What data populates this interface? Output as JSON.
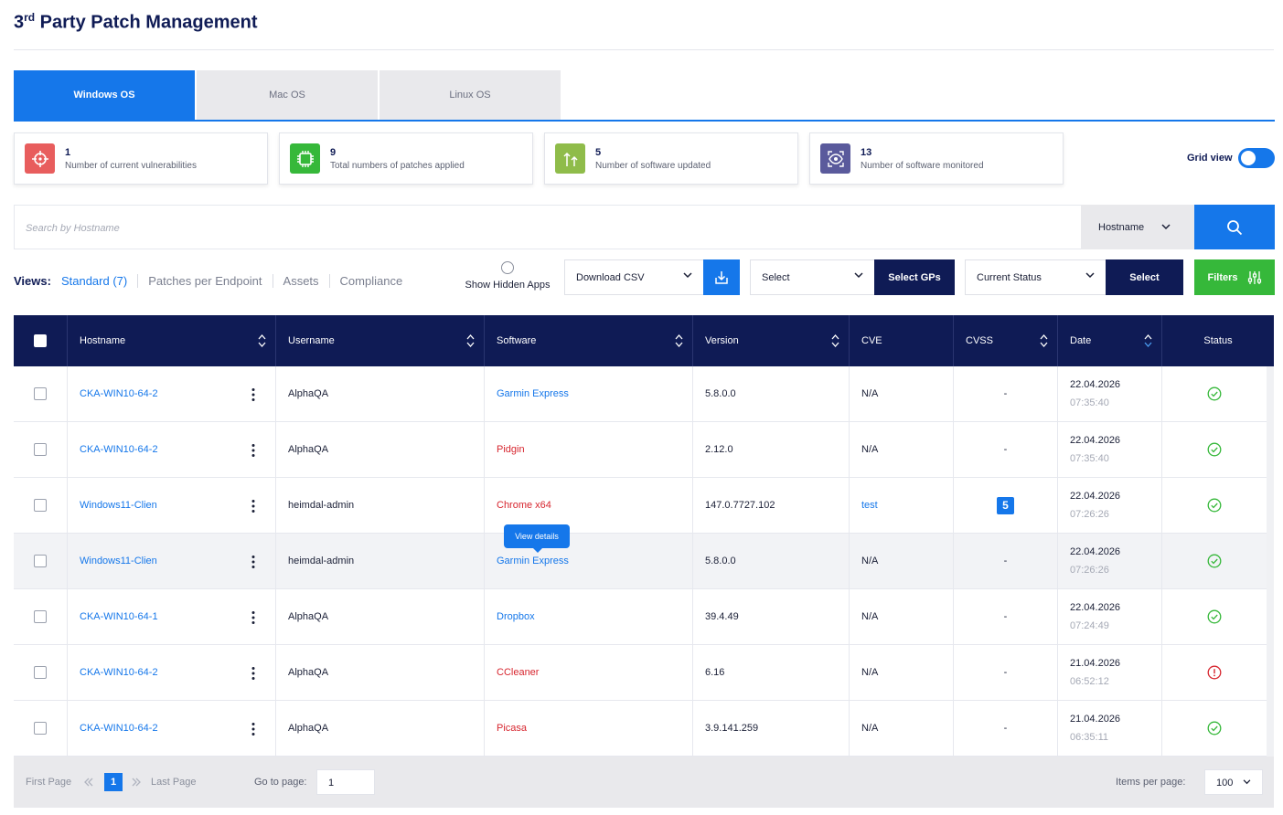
{
  "page": {
    "title_prefix": "3",
    "title_sup": "rd",
    "title_rest": " Party Patch Management"
  },
  "tabs": [
    {
      "label": "Windows OS",
      "active": true
    },
    {
      "label": "Mac OS",
      "active": false
    },
    {
      "label": "Linux OS",
      "active": false
    }
  ],
  "cards": [
    {
      "value": "1",
      "label": "Number of current vulnerabilities",
      "icon": "crosshair-icon",
      "color": "#e85d5d"
    },
    {
      "value": "9",
      "label": "Total numbers of patches applied",
      "icon": "chip-icon",
      "color": "#36b83a"
    },
    {
      "value": "5",
      "label": "Number of software updated",
      "icon": "upload-arrows-icon",
      "color": "#8fbc4a"
    },
    {
      "value": "13",
      "label": "Number of software monitored",
      "icon": "eye-icon",
      "color": "#5a5a9c"
    }
  ],
  "grid_view": {
    "label": "Grid view",
    "on": true
  },
  "search": {
    "placeholder": "Search by Hostname",
    "select_value": "Hostname"
  },
  "views": {
    "label": "Views:",
    "items": [
      "Standard (7)",
      "Patches per Endpoint",
      "Assets",
      "Compliance"
    ]
  },
  "hidden_apps": {
    "label": "Show Hidden Apps"
  },
  "toolbar": {
    "download_csv": "Download CSV",
    "gp_select": "Select",
    "select_gps": "Select GPs",
    "status_select": "Current Status",
    "select_button": "Select",
    "filters": "Filters"
  },
  "table": {
    "headers": [
      "Hostname",
      "Username",
      "Software",
      "Version",
      "CVE",
      "CVSS",
      "Date",
      "Status"
    ],
    "rows": [
      {
        "hostname": "CKA-WIN10-64-2",
        "username": "AlphaQA",
        "software": "Garmin Express",
        "software_color": "blue",
        "version": "5.8.0.0",
        "cve": "N/A",
        "cvss": "-",
        "date": "22.04.2026",
        "time": "07:35:40",
        "status": "ok"
      },
      {
        "hostname": "CKA-WIN10-64-2",
        "username": "AlphaQA",
        "software": "Pidgin",
        "software_color": "red",
        "version": "2.12.0",
        "cve": "N/A",
        "cvss": "-",
        "date": "22.04.2026",
        "time": "07:35:40",
        "status": "ok"
      },
      {
        "hostname": "Windows11-Clien",
        "username": "heimdal-admin",
        "software": "Chrome x64",
        "software_color": "red",
        "version": "147.0.7727.102",
        "cve": "test",
        "cvss": "5",
        "date": "22.04.2026",
        "time": "07:26:26",
        "status": "ok"
      },
      {
        "hostname": "Windows11-Clien",
        "username": "heimdal-admin",
        "software": "Garmin Express",
        "software_color": "blue",
        "version": "5.8.0.0",
        "cve": "N/A",
        "cvss": "-",
        "date": "22.04.2026",
        "time": "07:26:26",
        "status": "ok"
      },
      {
        "hostname": "CKA-WIN10-64-1",
        "username": "AlphaQA",
        "software": "Dropbox",
        "software_color": "blue",
        "version": "39.4.49",
        "cve": "N/A",
        "cvss": "-",
        "date": "22.04.2026",
        "time": "07:24:49",
        "status": "ok"
      },
      {
        "hostname": "CKA-WIN10-64-2",
        "username": "AlphaQA",
        "software": "CCleaner",
        "software_color": "red",
        "version": "6.16",
        "cve": "N/A",
        "cvss": "-",
        "date": "21.04.2026",
        "time": "06:52:12",
        "status": "warning"
      },
      {
        "hostname": "CKA-WIN10-64-2",
        "username": "AlphaQA",
        "software": "Picasa",
        "software_color": "red",
        "version": "3.9.141.259",
        "cve": "N/A",
        "cvss": "-",
        "date": "21.04.2026",
        "time": "06:35:11",
        "status": "ok"
      }
    ]
  },
  "tooltip": {
    "text": "View details"
  },
  "pagination": {
    "first": "First Page",
    "current": "1",
    "last": "Last Page",
    "goto_label": "Go to page:",
    "goto_value": "1",
    "items_label": "Items per page:",
    "items_value": "100"
  },
  "colors": {
    "primary": "#1577ea",
    "navy": "#0f1b55",
    "success": "#36b83a",
    "danger": "#d7262f"
  }
}
